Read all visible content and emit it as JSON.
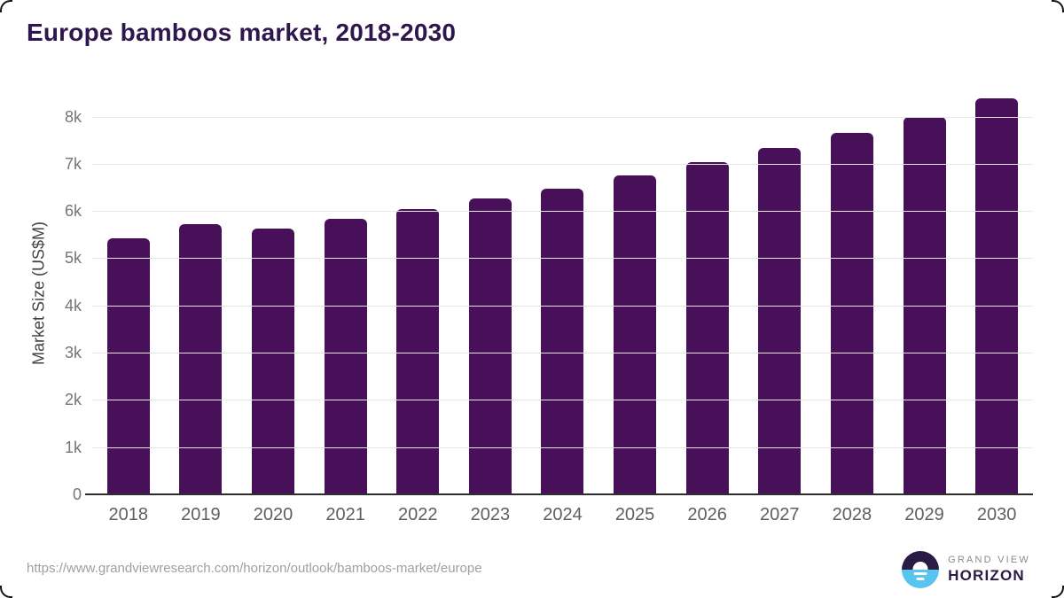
{
  "page": {
    "title": "Europe bamboos market, 2018-2030"
  },
  "chart_data": {
    "type": "bar",
    "title": "Europe bamboos market, 2018-2030",
    "categories": [
      "2018",
      "2019",
      "2020",
      "2021",
      "2022",
      "2023",
      "2024",
      "2025",
      "2026",
      "2027",
      "2028",
      "2029",
      "2030"
    ],
    "values": [
      5450,
      5740,
      5650,
      5850,
      6060,
      6290,
      6500,
      6770,
      7060,
      7360,
      7680,
      8020,
      8400
    ],
    "xlabel": "",
    "ylabel": "Market Size (US$M)",
    "ylim": [
      0,
      8536
    ],
    "yticks": [
      {
        "label": "0",
        "value": 0
      },
      {
        "label": "1k",
        "value": 1000
      },
      {
        "label": "2k",
        "value": 2000
      },
      {
        "label": "3k",
        "value": 3000
      },
      {
        "label": "4k",
        "value": 4000
      },
      {
        "label": "5k",
        "value": 5000
      },
      {
        "label": "6k",
        "value": 6000
      },
      {
        "label": "7k",
        "value": 7000
      },
      {
        "label": "8k",
        "value": 8000
      }
    ],
    "grid": true,
    "legend_position": "none",
    "bar_color": "#481058",
    "grid_color": "#e8e8e8",
    "axis_line_color": "#2d2d2d",
    "tick_label_color": "#757575",
    "x_label_color": "#5f5f5f",
    "title_color": "#2f164c"
  },
  "footer": {
    "source_url": "https://www.grandviewresearch.com/horizon/outlook/bamboos-market/europe",
    "logo": {
      "line1": "GRAND VIEW",
      "line2": "HORIZON",
      "dark_color": "#2a1b45",
      "blue_color": "#57c5f0"
    }
  }
}
